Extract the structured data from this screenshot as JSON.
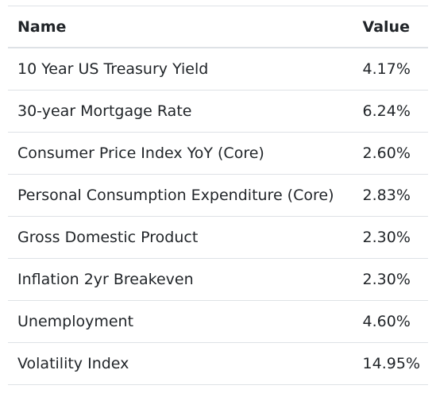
{
  "table": {
    "headers": {
      "name": "Name",
      "value": "Value"
    },
    "rows": [
      {
        "name": "10 Year US Treasury Yield",
        "value": "4.17%"
      },
      {
        "name": "30-year Mortgage Rate",
        "value": "6.24%"
      },
      {
        "name": "Consumer Price Index YoY (Core)",
        "value": "2.60%"
      },
      {
        "name": "Personal Consumption Expenditure (Core)",
        "value": "2.83%"
      },
      {
        "name": "Gross Domestic Product",
        "value": "2.30%"
      },
      {
        "name": "Inflation 2yr Breakeven",
        "value": "2.30%"
      },
      {
        "name": "Unemployment",
        "value": "4.60%"
      },
      {
        "name": "Volatility Index",
        "value": "14.95%"
      }
    ]
  }
}
